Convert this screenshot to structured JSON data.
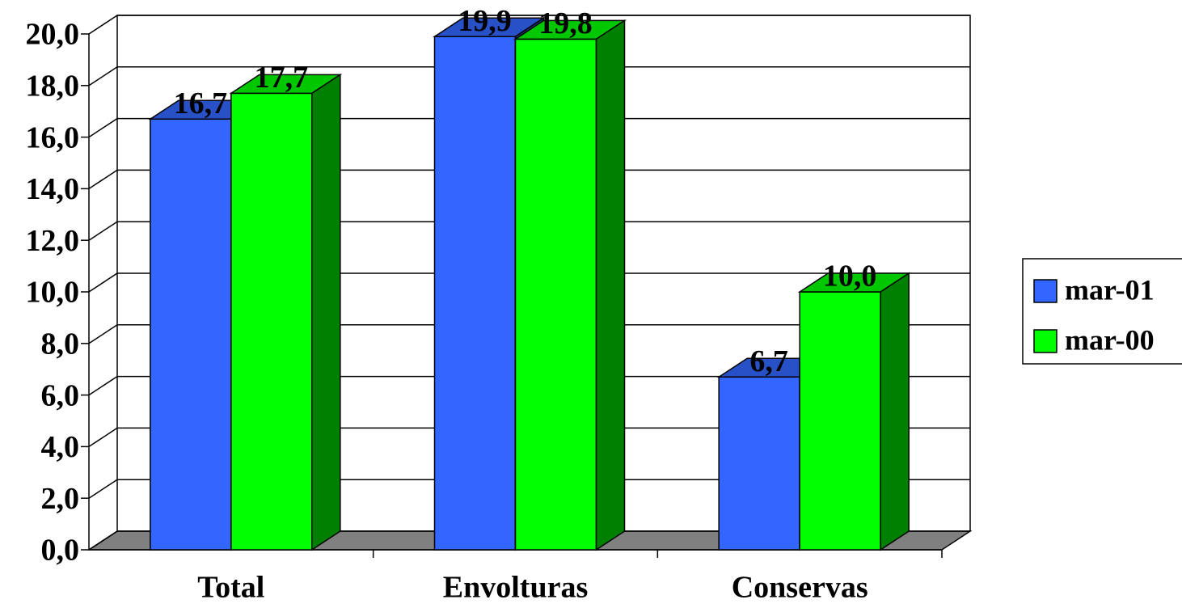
{
  "chart_data": {
    "type": "bar3d",
    "categories": [
      "Total",
      "Envolturas",
      "Conservas"
    ],
    "series": [
      {
        "name": "mar-01",
        "color": "#3366ff",
        "values": [
          16.7,
          19.9,
          6.7
        ],
        "value_labels": [
          "16,7",
          "19,9",
          "6,7"
        ]
      },
      {
        "name": "mar-00",
        "color": "#00ff00",
        "values": [
          17.7,
          19.8,
          10.0
        ],
        "value_labels": [
          "17,7",
          "19,8",
          "10,0"
        ]
      }
    ],
    "ylim": [
      0,
      20
    ],
    "yticks": [
      {
        "value": 0,
        "label": "0,0"
      },
      {
        "value": 2,
        "label": "2,0"
      },
      {
        "value": 4,
        "label": "4,0"
      },
      {
        "value": 6,
        "label": "6,0"
      },
      {
        "value": 8,
        "label": "8,0"
      },
      {
        "value": 10,
        "label": "10,0"
      },
      {
        "value": 12,
        "label": "12,0"
      },
      {
        "value": 14,
        "label": "14,0"
      },
      {
        "value": 16,
        "label": "16,0"
      },
      {
        "value": 18,
        "label": "18,0"
      },
      {
        "value": 20,
        "label": "20,0"
      }
    ],
    "grid": true,
    "legend": "right"
  }
}
